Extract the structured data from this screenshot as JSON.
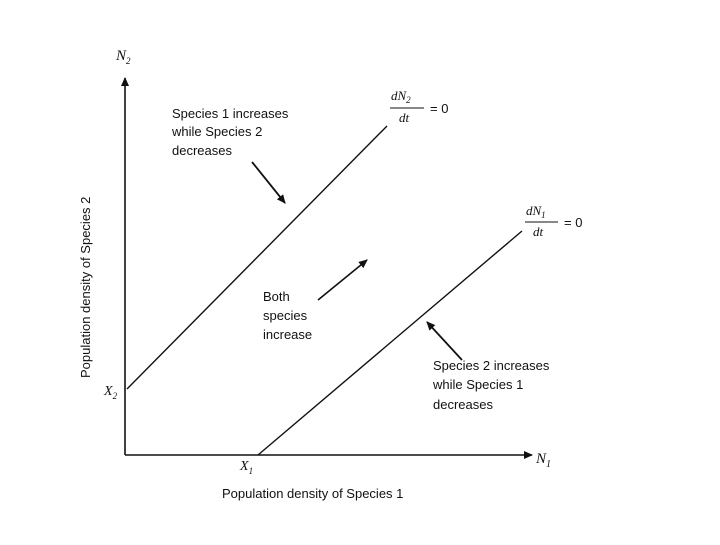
{
  "diagram": {
    "y_axis_var": "N",
    "y_axis_sub": "2",
    "x_axis_var": "N",
    "x_axis_sub": "1",
    "y_axis_label": "Population density of Species 2",
    "x_axis_label": "Population density of Species 1",
    "x_intercept_var": "X",
    "x_intercept_sub": "1",
    "y_intercept_var": "X",
    "y_intercept_sub": "2",
    "isocline_2": {
      "numerator": "dN",
      "numerator_sub": "2",
      "denominator": "dt",
      "equals": "= 0"
    },
    "isocline_1": {
      "numerator": "dN",
      "numerator_sub": "1",
      "denominator": "dt",
      "equals": "= 0"
    },
    "region_top_left": [
      "Species 1 increases",
      "while Species 2",
      "decreases"
    ],
    "region_middle": [
      "Both",
      "species",
      "increase"
    ],
    "region_bottom_right": [
      "Species 2 increases",
      "while Species 1",
      "decreases"
    ]
  },
  "colors": {
    "ink": "#111111",
    "background": "#ffffff"
  }
}
